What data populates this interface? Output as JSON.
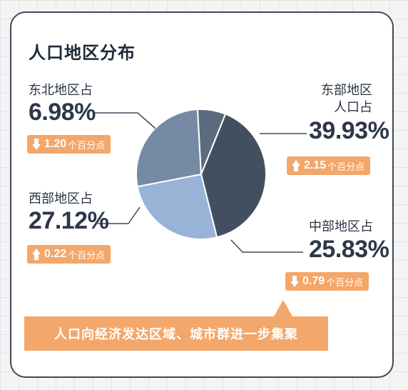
{
  "title": "人口地区分布",
  "banner": "人口向经济发达区域、城市群进一步集聚",
  "colors": {
    "east": "#434f61",
    "central": "#98b3d6",
    "west": "#768aa5",
    "northeast": "#5d6b80",
    "accent": "#f3a76a"
  },
  "regions": {
    "northeast": {
      "label": "东北地区占",
      "pct": "6.98%",
      "direction": "down",
      "change": "1.20",
      "unit": "个百分点"
    },
    "east": {
      "label1": "东部地区",
      "label2": "人口占",
      "pct": "39.93%",
      "direction": "up",
      "change": "2.15",
      "unit": "个百分点"
    },
    "west": {
      "label": "西部地区占",
      "pct": "27.12%",
      "direction": "up",
      "change": "0.22",
      "unit": "个百分点"
    },
    "central": {
      "label": "中部地区占",
      "pct": "25.83%",
      "direction": "down",
      "change": "0.79",
      "unit": "个百分点"
    }
  },
  "chart_data": {
    "type": "pie",
    "categories": [
      "东部地区",
      "中部地区",
      "西部地区",
      "东北地区"
    ],
    "values": [
      39.93,
      25.83,
      27.12,
      6.98
    ],
    "unit": "%",
    "changes": [
      2.15,
      -0.79,
      0.22,
      -1.2
    ],
    "change_unit": "个百分点"
  }
}
